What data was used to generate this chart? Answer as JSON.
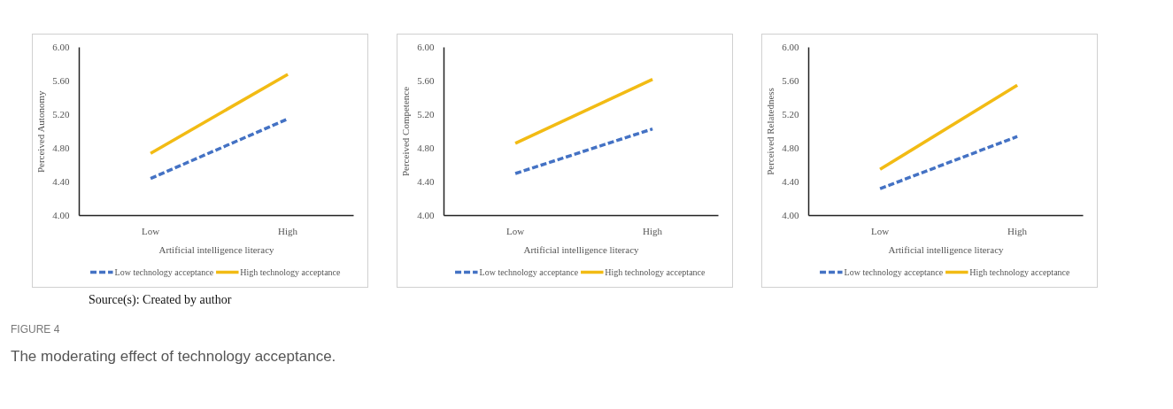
{
  "chart_data": [
    {
      "type": "line",
      "categories": [
        "Low",
        "High"
      ],
      "xlabel": "Artificial intelligence literacy",
      "ylabel": "Perceived Autonomy",
      "ylim": [
        4.0,
        6.0
      ],
      "yticks": [
        {
          "value": 4,
          "label": "4.00"
        },
        {
          "value": 4.4,
          "label": "4.40"
        },
        {
          "value": 4.8,
          "label": "4.80"
        },
        {
          "value": 5.2,
          "label": "5.20"
        },
        {
          "value": 5.6,
          "label": "5.60"
        },
        {
          "value": 6,
          "label": "6.00"
        }
      ],
      "legend": "bottom",
      "series": [
        {
          "name": "Low technology acceptance",
          "color": "#4472c4",
          "line_style": "dashed",
          "values": [
            4.44,
            5.15
          ]
        },
        {
          "name": "High technology acceptance",
          "color": "#f2bb14",
          "line_style": "solid",
          "values": [
            4.74,
            5.68
          ]
        }
      ],
      "annotations": [
        "Source(s): Created by author",
        "FIGURE 4",
        "The moderating effect of technology acceptance."
      ]
    },
    {
      "type": "line",
      "categories": [
        "Low",
        "High"
      ],
      "xlabel": "Artificial intelligence literacy",
      "ylabel": "Perceived Competence",
      "ylim": [
        4.0,
        6.0
      ],
      "yticks": [
        {
          "value": 4,
          "label": "4.00"
        },
        {
          "value": 4.4,
          "label": "4.40"
        },
        {
          "value": 4.8,
          "label": "4.80"
        },
        {
          "value": 5.2,
          "label": "5.20"
        },
        {
          "value": 5.6,
          "label": "5.60"
        },
        {
          "value": 6,
          "label": "6.00"
        }
      ],
      "legend": "bottom",
      "series": [
        {
          "name": "Low technology acceptance",
          "color": "#4472c4",
          "line_style": "dashed",
          "values": [
            4.5,
            5.03
          ]
        },
        {
          "name": "High technology acceptance",
          "color": "#f2bb14",
          "line_style": "solid",
          "values": [
            4.86,
            5.62
          ]
        }
      ]
    },
    {
      "type": "line",
      "categories": [
        "Low",
        "High"
      ],
      "xlabel": "Artificial intelligence literacy",
      "ylabel": "Perceived Relatedness",
      "ylim": [
        4.0,
        6.0
      ],
      "yticks": [
        {
          "value": 4,
          "label": "4.00"
        },
        {
          "value": 4.4,
          "label": "4.40"
        },
        {
          "value": 4.8,
          "label": "4.80"
        },
        {
          "value": 5.2,
          "label": "5.20"
        },
        {
          "value": 5.6,
          "label": "5.60"
        },
        {
          "value": 6,
          "label": "6.00"
        }
      ],
      "legend": "bottom",
      "series": [
        {
          "name": "Low technology acceptance",
          "color": "#4472c4",
          "line_style": "dashed",
          "values": [
            4.32,
            4.94
          ]
        },
        {
          "name": "High technology acceptance",
          "color": "#f2bb14",
          "line_style": "solid",
          "values": [
            4.55,
            5.55
          ]
        }
      ]
    }
  ]
}
